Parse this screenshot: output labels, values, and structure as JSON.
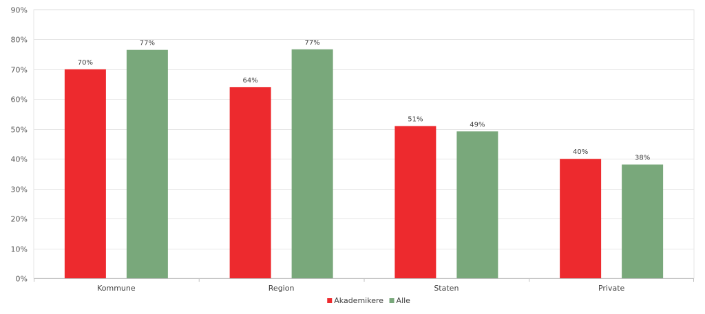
{
  "chart_data": {
    "type": "bar",
    "categories": [
      "Kommune",
      "Region",
      "Staten",
      "Private"
    ],
    "series": [
      {
        "name": "Akademikere",
        "color": "#ED2A2E",
        "values": [
          70,
          64,
          51,
          40
        ],
        "labels": [
          "70%",
          "64%",
          "51%",
          "40%"
        ]
      },
      {
        "name": "Alle",
        "color": "#79A87B",
        "values": [
          76.5,
          76.7,
          49.2,
          38.1
        ],
        "labels": [
          "77%",
          "77%",
          "49%",
          "38%"
        ]
      }
    ],
    "ylim": [
      0,
      90
    ],
    "yticks": [
      0,
      10,
      20,
      30,
      40,
      50,
      60,
      70,
      80,
      90
    ],
    "ytick_labels": [
      "0%",
      "10%",
      "20%",
      "30%",
      "40%",
      "50%",
      "60%",
      "70%",
      "80%",
      "90%"
    ],
    "grid": true,
    "legend_position": "bottom-center",
    "title": "",
    "xlabel": "",
    "ylabel": ""
  }
}
